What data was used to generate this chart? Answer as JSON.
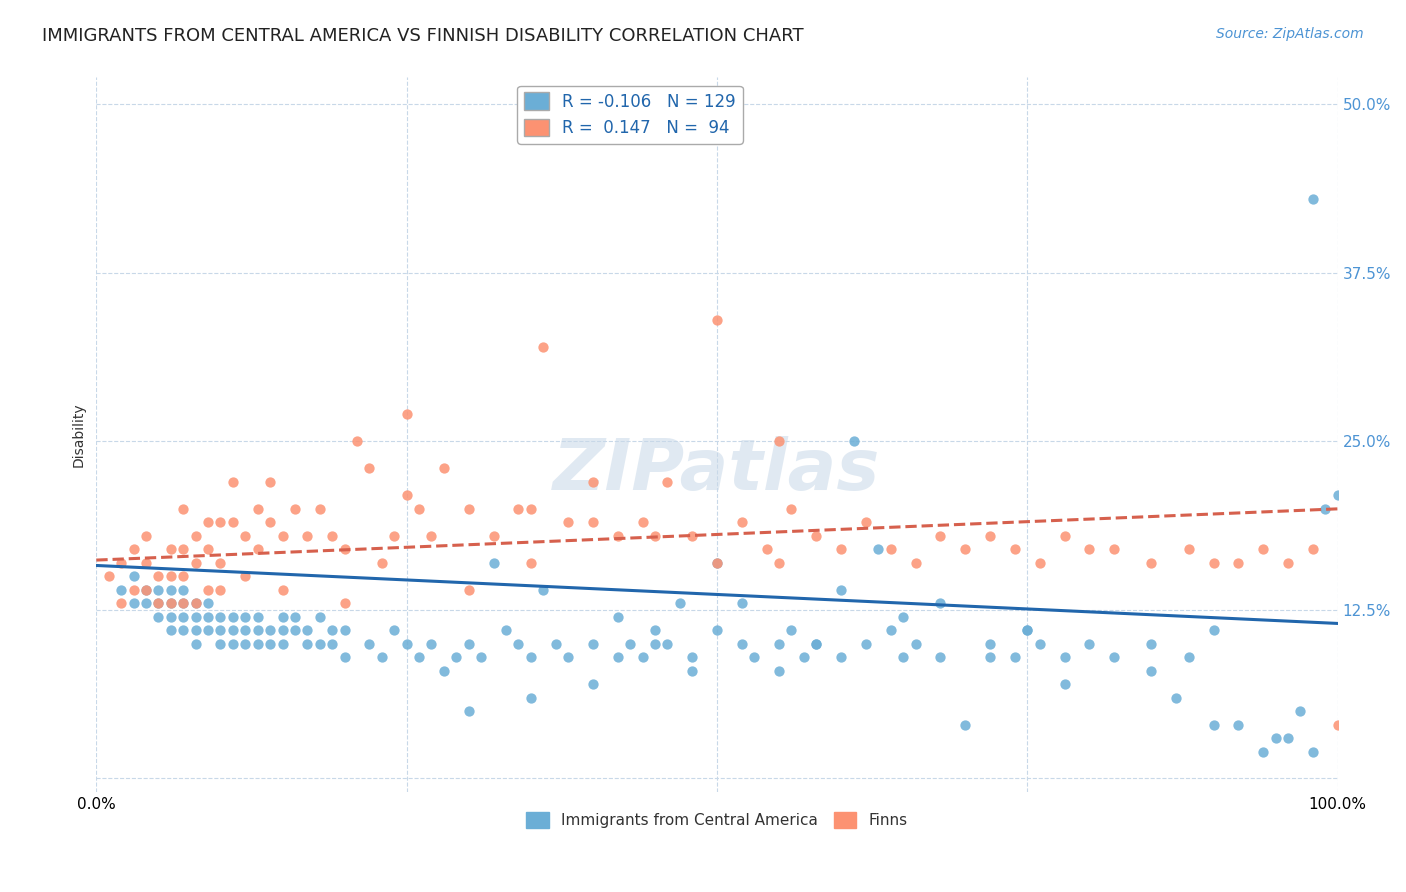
{
  "title": "IMMIGRANTS FROM CENTRAL AMERICA VS FINNISH DISABILITY CORRELATION CHART",
  "source": "Source: ZipAtlas.com",
  "ylabel": "Disability",
  "xlim": [
    0,
    1
  ],
  "ylim": [
    -0.01,
    0.52
  ],
  "yticks": [
    0.0,
    0.125,
    0.25,
    0.375,
    0.5
  ],
  "ytick_labels": [
    "",
    "12.5%",
    "25.0%",
    "37.5%",
    "50.0%"
  ],
  "blue_color": "#6baed6",
  "pink_color": "#fc9272",
  "blue_line_color": "#2166ac",
  "pink_line_color": "#d6604d",
  "legend_text_color": "#2166ac",
  "watermark": "ZIPatlas",
  "title_fontsize": 13,
  "source_fontsize": 10,
  "axis_label_fontsize": 10,
  "tick_fontsize": 11,
  "blue_scatter_x": [
    0.02,
    0.03,
    0.03,
    0.04,
    0.04,
    0.05,
    0.05,
    0.05,
    0.06,
    0.06,
    0.06,
    0.06,
    0.07,
    0.07,
    0.07,
    0.07,
    0.08,
    0.08,
    0.08,
    0.08,
    0.09,
    0.09,
    0.09,
    0.1,
    0.1,
    0.1,
    0.11,
    0.11,
    0.11,
    0.12,
    0.12,
    0.12,
    0.13,
    0.13,
    0.13,
    0.14,
    0.14,
    0.15,
    0.15,
    0.15,
    0.16,
    0.16,
    0.17,
    0.17,
    0.18,
    0.18,
    0.19,
    0.19,
    0.2,
    0.2,
    0.22,
    0.23,
    0.24,
    0.25,
    0.26,
    0.27,
    0.28,
    0.29,
    0.3,
    0.31,
    0.32,
    0.33,
    0.34,
    0.35,
    0.36,
    0.37,
    0.38,
    0.4,
    0.42,
    0.43,
    0.44,
    0.45,
    0.46,
    0.47,
    0.48,
    0.5,
    0.52,
    0.53,
    0.55,
    0.56,
    0.57,
    0.58,
    0.6,
    0.62,
    0.64,
    0.65,
    0.66,
    0.68,
    0.7,
    0.72,
    0.74,
    0.75,
    0.76,
    0.78,
    0.8,
    0.82,
    0.85,
    0.87,
    0.88,
    0.9,
    0.92,
    0.94,
    0.96,
    0.97,
    0.98,
    0.99,
    1.0,
    0.6,
    0.61,
    0.63,
    0.5,
    0.52,
    0.48,
    0.4,
    0.3,
    0.35,
    0.45,
    0.55,
    0.65,
    0.72,
    0.78,
    0.85,
    0.9,
    0.95,
    0.98,
    0.75,
    0.68,
    0.58,
    0.42
  ],
  "blue_scatter_y": [
    0.14,
    0.13,
    0.15,
    0.14,
    0.13,
    0.13,
    0.14,
    0.12,
    0.14,
    0.13,
    0.12,
    0.11,
    0.13,
    0.12,
    0.11,
    0.14,
    0.13,
    0.12,
    0.11,
    0.1,
    0.12,
    0.13,
    0.11,
    0.12,
    0.11,
    0.1,
    0.12,
    0.11,
    0.1,
    0.11,
    0.12,
    0.1,
    0.11,
    0.12,
    0.1,
    0.11,
    0.1,
    0.12,
    0.11,
    0.1,
    0.11,
    0.12,
    0.1,
    0.11,
    0.12,
    0.1,
    0.11,
    0.1,
    0.11,
    0.09,
    0.1,
    0.09,
    0.11,
    0.1,
    0.09,
    0.1,
    0.08,
    0.09,
    0.1,
    0.09,
    0.16,
    0.11,
    0.1,
    0.09,
    0.14,
    0.1,
    0.09,
    0.1,
    0.12,
    0.1,
    0.09,
    0.11,
    0.1,
    0.13,
    0.09,
    0.11,
    0.1,
    0.09,
    0.1,
    0.11,
    0.09,
    0.1,
    0.09,
    0.1,
    0.11,
    0.09,
    0.1,
    0.09,
    0.04,
    0.1,
    0.09,
    0.11,
    0.1,
    0.09,
    0.1,
    0.09,
    0.1,
    0.06,
    0.09,
    0.11,
    0.04,
    0.02,
    0.03,
    0.05,
    0.43,
    0.2,
    0.21,
    0.14,
    0.25,
    0.17,
    0.16,
    0.13,
    0.08,
    0.07,
    0.05,
    0.06,
    0.1,
    0.08,
    0.12,
    0.09,
    0.07,
    0.08,
    0.04,
    0.03,
    0.02,
    0.11,
    0.13,
    0.1,
    0.09
  ],
  "pink_scatter_x": [
    0.01,
    0.02,
    0.02,
    0.03,
    0.03,
    0.04,
    0.04,
    0.04,
    0.05,
    0.05,
    0.06,
    0.06,
    0.06,
    0.07,
    0.07,
    0.07,
    0.07,
    0.08,
    0.08,
    0.08,
    0.09,
    0.09,
    0.09,
    0.1,
    0.1,
    0.1,
    0.11,
    0.11,
    0.12,
    0.12,
    0.13,
    0.13,
    0.14,
    0.14,
    0.15,
    0.16,
    0.17,
    0.18,
    0.19,
    0.2,
    0.21,
    0.22,
    0.23,
    0.24,
    0.25,
    0.26,
    0.27,
    0.28,
    0.3,
    0.32,
    0.34,
    0.35,
    0.36,
    0.38,
    0.4,
    0.42,
    0.44,
    0.46,
    0.48,
    0.5,
    0.52,
    0.54,
    0.55,
    0.56,
    0.58,
    0.6,
    0.62,
    0.64,
    0.66,
    0.68,
    0.7,
    0.72,
    0.74,
    0.76,
    0.78,
    0.8,
    0.82,
    0.85,
    0.88,
    0.9,
    0.92,
    0.94,
    0.96,
    0.98,
    1.0,
    0.15,
    0.2,
    0.25,
    0.3,
    0.35,
    0.4,
    0.45,
    0.5,
    0.55
  ],
  "pink_scatter_y": [
    0.15,
    0.16,
    0.13,
    0.17,
    0.14,
    0.16,
    0.14,
    0.18,
    0.15,
    0.13,
    0.17,
    0.15,
    0.13,
    0.17,
    0.15,
    0.2,
    0.13,
    0.18,
    0.16,
    0.13,
    0.19,
    0.17,
    0.14,
    0.19,
    0.16,
    0.14,
    0.19,
    0.22,
    0.18,
    0.15,
    0.2,
    0.17,
    0.19,
    0.22,
    0.18,
    0.2,
    0.18,
    0.2,
    0.18,
    0.17,
    0.25,
    0.23,
    0.16,
    0.18,
    0.27,
    0.2,
    0.18,
    0.23,
    0.2,
    0.18,
    0.2,
    0.16,
    0.32,
    0.19,
    0.22,
    0.18,
    0.19,
    0.22,
    0.18,
    0.16,
    0.19,
    0.17,
    0.25,
    0.2,
    0.18,
    0.17,
    0.19,
    0.17,
    0.16,
    0.18,
    0.17,
    0.18,
    0.17,
    0.16,
    0.18,
    0.17,
    0.17,
    0.16,
    0.17,
    0.16,
    0.16,
    0.17,
    0.16,
    0.17,
    0.04,
    0.14,
    0.13,
    0.21,
    0.14,
    0.2,
    0.19,
    0.18,
    0.34,
    0.16
  ],
  "blue_line_x": [
    0.0,
    1.0
  ],
  "blue_line_y": [
    0.158,
    0.115
  ],
  "pink_line_x": [
    0.0,
    1.0
  ],
  "pink_line_y": [
    0.162,
    0.2
  ],
  "background_color": "#ffffff",
  "grid_color": "#c8d8e8",
  "right_tick_color": "#4d94d4"
}
